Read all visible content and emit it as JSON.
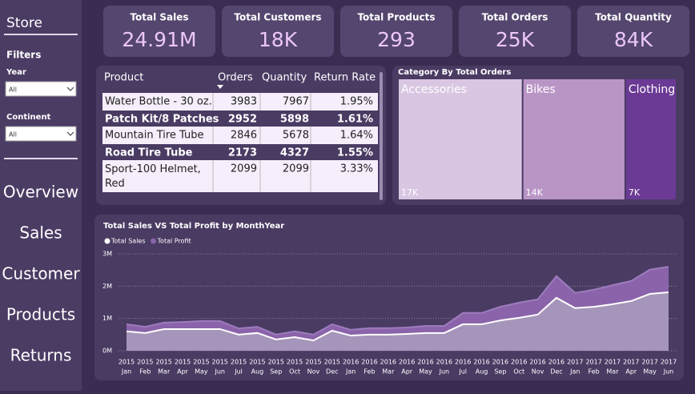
{
  "sidebar": {
    "title": "Store",
    "filters_title": "Filters",
    "filters": [
      {
        "label": "Year",
        "value": "All"
      },
      {
        "label": "Continent",
        "value": "All"
      }
    ],
    "nav": [
      "Overview",
      "Sales",
      "Customer",
      "Products",
      "Returns"
    ]
  },
  "kpis": [
    {
      "label": "Total Sales",
      "value": "24.91M"
    },
    {
      "label": "Total Customers",
      "value": "18K"
    },
    {
      "label": "Total Products",
      "value": "293"
    },
    {
      "label": "Total Orders",
      "value": "25K"
    },
    {
      "label": "Total Quantity",
      "value": "84K"
    }
  ],
  "table": {
    "columns": [
      "Product",
      "Orders",
      "Quantity",
      "Return Rate"
    ],
    "rows": [
      [
        "Water Bottle - 30 oz.",
        3983,
        7967,
        "1.95%"
      ],
      [
        "Patch Kit/8 Patches",
        2952,
        5898,
        "1.61%"
      ],
      [
        "Mountain Tire Tube",
        2846,
        5678,
        "1.64%"
      ],
      [
        "Road Tire Tube",
        2173,
        4327,
        "1.55%"
      ],
      [
        "Sport-100 Helmet, Red",
        2099,
        2099,
        "3.33%"
      ]
    ]
  },
  "chart_data": [
    {
      "type": "treemap",
      "title": "Category By Total Orders",
      "categories": [
        "Accessories",
        "Bikes",
        "Clothing"
      ],
      "values": [
        17000,
        14000,
        7000
      ],
      "value_labels": [
        "17K",
        "14K",
        "7K"
      ],
      "colors": [
        "#d8c6e2",
        "#b995c6",
        "#6b3a94"
      ]
    },
    {
      "type": "area",
      "title": "Total Sales VS Total Profit by MonthYear",
      "categories": [
        [
          "2015",
          "Jan"
        ],
        [
          "2015",
          "Feb"
        ],
        [
          "2015",
          "Mar"
        ],
        [
          "2015",
          "Apr"
        ],
        [
          "2015",
          "May"
        ],
        [
          "2015",
          "Jun"
        ],
        [
          "2015",
          "Jul"
        ],
        [
          "2015",
          "Aug"
        ],
        [
          "2015",
          "Sep"
        ],
        [
          "2015",
          "Oct"
        ],
        [
          "2015",
          "Nov"
        ],
        [
          "2015",
          "Dec"
        ],
        [
          "2016",
          "Jan"
        ],
        [
          "2016",
          "Feb"
        ],
        [
          "2016",
          "Mar"
        ],
        [
          "2016",
          "Apr"
        ],
        [
          "2016",
          "May"
        ],
        [
          "2016",
          "Jun"
        ],
        [
          "2016",
          "Jul"
        ],
        [
          "2016",
          "Aug"
        ],
        [
          "2016",
          "Sep"
        ],
        [
          "2016",
          "Oct"
        ],
        [
          "2016",
          "Nov"
        ],
        [
          "2016",
          "Dec"
        ],
        [
          "2017",
          "Jan"
        ],
        [
          "2017",
          "Feb"
        ],
        [
          "2017",
          "Mar"
        ],
        [
          "2017",
          "Apr"
        ],
        [
          "2017",
          "May"
        ],
        [
          "2017",
          "Jun"
        ]
      ],
      "series": [
        {
          "name": "Total Sales",
          "color": "#ffffff",
          "values": [
            600000,
            550000,
            670000,
            670000,
            670000,
            670000,
            500000,
            550000,
            350000,
            420000,
            320000,
            620000,
            470000,
            500000,
            500000,
            520000,
            550000,
            550000,
            820000,
            820000,
            940000,
            1020000,
            1120000,
            1640000,
            1320000,
            1360000,
            1440000,
            1540000,
            1760000,
            1810000
          ]
        },
        {
          "name": "Total Profit",
          "color": "#8a63aa",
          "values": [
            820000,
            740000,
            870000,
            890000,
            920000,
            920000,
            690000,
            740000,
            500000,
            600000,
            500000,
            820000,
            650000,
            700000,
            700000,
            720000,
            770000,
            770000,
            1170000,
            1170000,
            1360000,
            1490000,
            1590000,
            2310000,
            1790000,
            1890000,
            2030000,
            2160000,
            2510000,
            2600000
          ]
        }
      ],
      "ylim": [
        0,
        3000000
      ],
      "yticks": [
        {
          "value": 0,
          "label": "0M"
        },
        {
          "value": 1000000,
          "label": "1M"
        },
        {
          "value": 2000000,
          "label": "2M"
        },
        {
          "value": 3000000,
          "label": "3M"
        }
      ],
      "grid": true
    }
  ]
}
